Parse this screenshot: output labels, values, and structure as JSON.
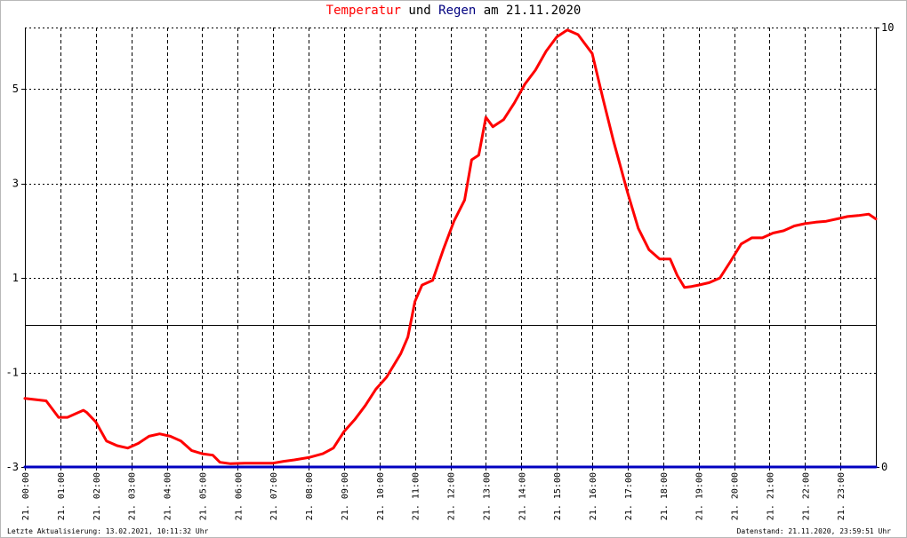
{
  "title": {
    "temp_word": "Temperatur",
    "und_word": "und",
    "rain_word": "Regen",
    "date_text": "am 21.11.2020"
  },
  "footer": {
    "left": "Letzte Aktualisierung: 13.02.2021, 10:11:32 Uhr",
    "right": "Datenstand: 21.11.2020, 23:59:51 Uhr"
  },
  "colors": {
    "temperature": "#ff0000",
    "rain": "#0000c0",
    "grid": "#000000",
    "zero_line": "#000000"
  },
  "chart_data": {
    "type": "line",
    "title": "Temperatur und Regen am 21.11.2020",
    "x_tick_labels": [
      "21. 00:00",
      "21. 01:00",
      "21. 02:00",
      "21. 03:00",
      "21. 04:00",
      "21. 05:00",
      "21. 06:00",
      "21. 07:00",
      "21. 08:00",
      "21. 09:00",
      "21. 10:00",
      "21. 11:00",
      "21. 12:00",
      "21. 13:00",
      "21. 14:00",
      "21. 15:00",
      "21. 16:00",
      "21. 17:00",
      "21. 18:00",
      "21. 19:00",
      "21. 20:00",
      "21. 21:00",
      "21. 22:00",
      "21. 23:00"
    ],
    "xlim": [
      0,
      24
    ],
    "y_left": {
      "ylim": [
        -3,
        6.3
      ],
      "ticks": [
        -3,
        -1,
        1,
        3,
        5
      ],
      "tick_labels": [
        "-3",
        "-1",
        "1",
        "3",
        "5"
      ]
    },
    "y_right": {
      "ylim": [
        0,
        10
      ],
      "ticks": [
        0,
        10
      ],
      "tick_labels": [
        "0",
        "10"
      ]
    },
    "zero_line": 0,
    "grid": true,
    "series": [
      {
        "name": "Temperatur",
        "axis": "left",
        "color": "#ff0000",
        "x": [
          0,
          0.6,
          0.8,
          0.95,
          1.2,
          1.5,
          1.65,
          1.75,
          2.0,
          2.3,
          2.6,
          2.9,
          3.2,
          3.5,
          3.8,
          4.1,
          4.4,
          4.7,
          5.0,
          5.3,
          5.5,
          5.8,
          6.2,
          6.6,
          7.0,
          7.3,
          7.6,
          8.0,
          8.4,
          8.7,
          9.0,
          9.3,
          9.6,
          9.9,
          10.2,
          10.4,
          10.6,
          10.8,
          11.0,
          11.2,
          11.5,
          11.8,
          12.1,
          12.4,
          12.6,
          12.8,
          13.0,
          13.2,
          13.5,
          13.8,
          14.1,
          14.4,
          14.7,
          15.0,
          15.3,
          15.6,
          15.8,
          16.0,
          16.3,
          16.6,
          17.0,
          17.3,
          17.6,
          17.9,
          18.2,
          18.4,
          18.6,
          18.8,
          19.0,
          19.3,
          19.6,
          19.9,
          20.2,
          20.5,
          20.8,
          21.1,
          21.4,
          21.7,
          22.0,
          22.3,
          22.6,
          22.9,
          23.2,
          23.5,
          23.8,
          24.0
        ],
        "y": [
          -1.55,
          -1.6,
          -1.8,
          -1.95,
          -1.95,
          -1.85,
          -1.8,
          -1.85,
          -2.05,
          -2.45,
          -2.55,
          -2.6,
          -2.5,
          -2.35,
          -2.3,
          -2.35,
          -2.45,
          -2.65,
          -2.72,
          -2.75,
          -2.9,
          -2.93,
          -2.92,
          -2.92,
          -2.92,
          -2.88,
          -2.85,
          -2.8,
          -2.72,
          -2.6,
          -2.25,
          -2.0,
          -1.7,
          -1.35,
          -1.1,
          -0.85,
          -0.6,
          -0.25,
          0.5,
          0.85,
          0.95,
          1.6,
          2.2,
          2.65,
          3.5,
          3.6,
          4.4,
          4.2,
          4.35,
          4.7,
          5.1,
          5.4,
          5.8,
          6.1,
          6.25,
          6.15,
          5.95,
          5.75,
          4.8,
          3.9,
          2.8,
          2.05,
          1.6,
          1.4,
          1.4,
          1.05,
          0.8,
          0.82,
          0.85,
          0.9,
          1.0,
          1.35,
          1.72,
          1.85,
          1.85,
          1.95,
          2.0,
          2.1,
          2.15,
          2.18,
          2.2,
          2.25,
          2.3,
          2.32,
          2.35,
          2.25
        ]
      },
      {
        "name": "Regen",
        "axis": "right",
        "color": "#0000c0",
        "x": [
          0,
          24
        ],
        "y": [
          0,
          0
        ]
      }
    ]
  }
}
